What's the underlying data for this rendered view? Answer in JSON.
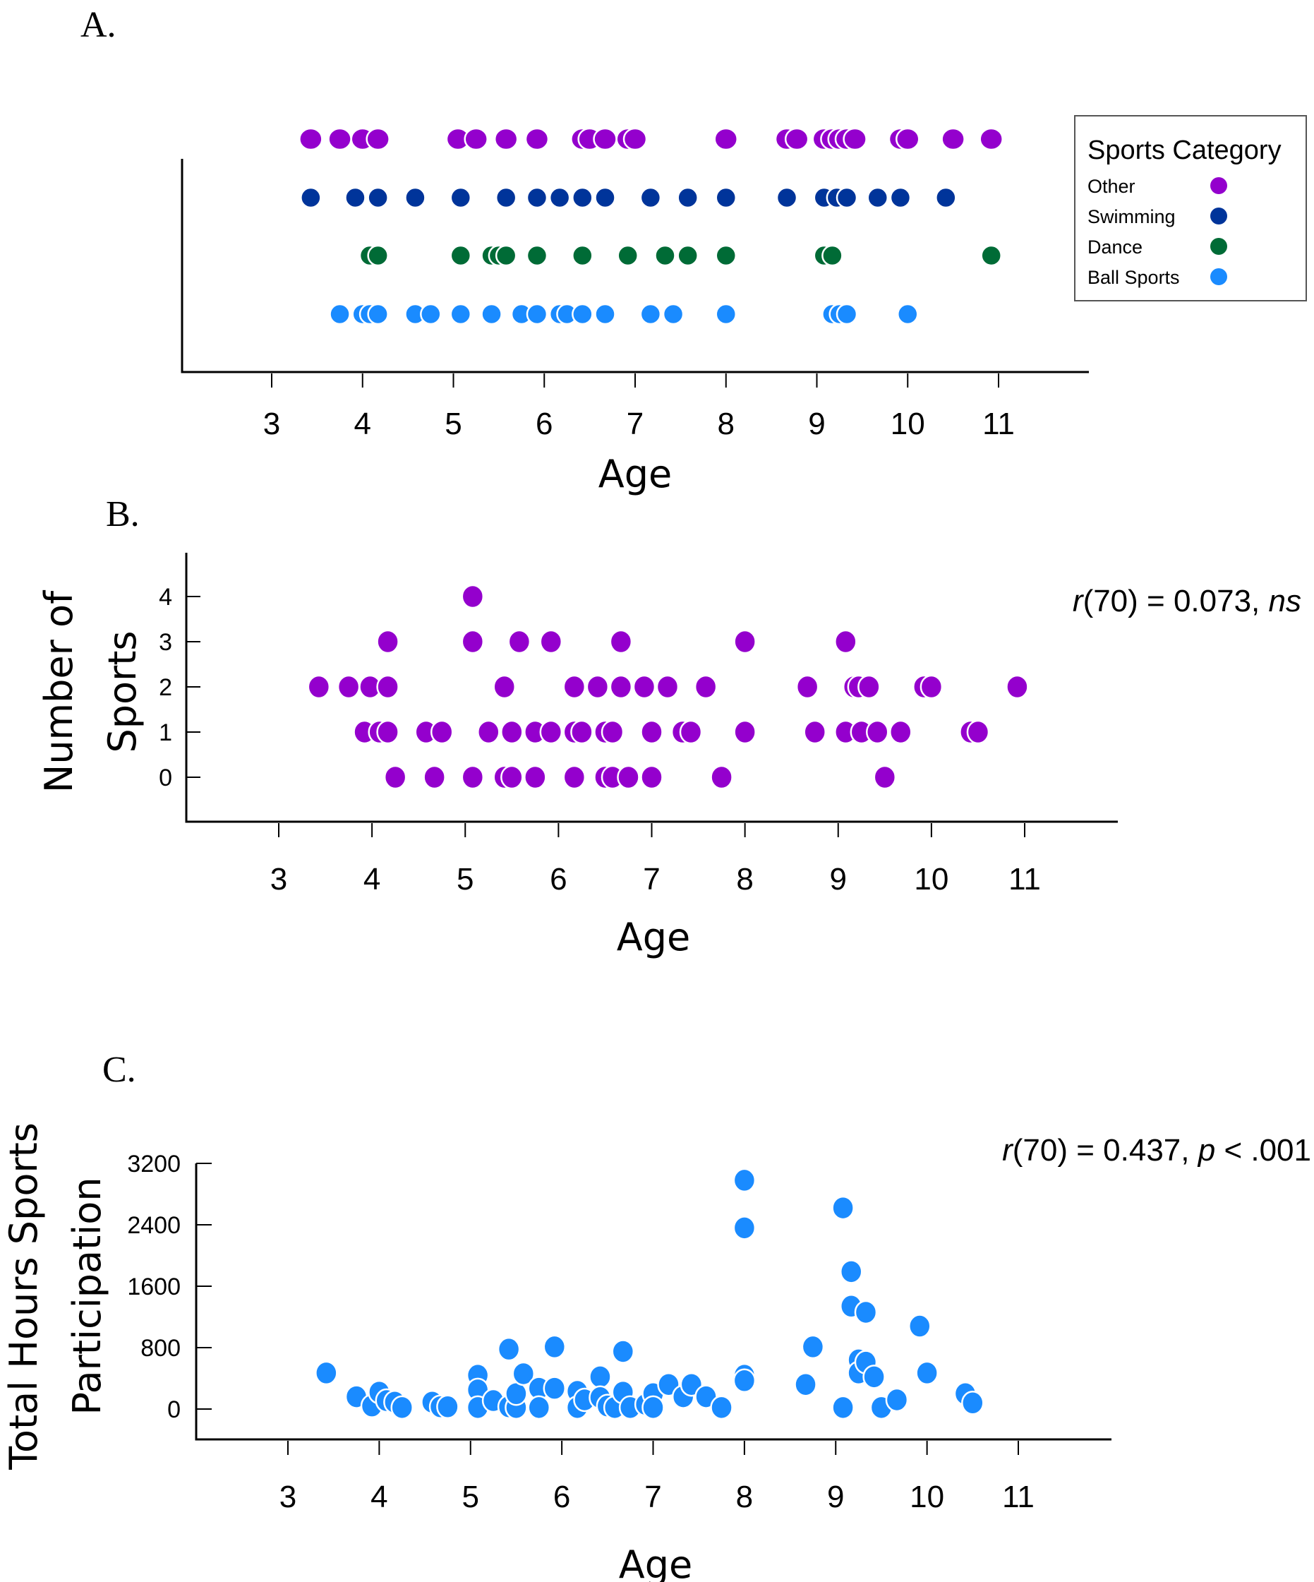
{
  "chart_data": [
    {
      "panel": "A.",
      "type": "scatter",
      "title": "",
      "xlabel": "Age",
      "ylabel": "",
      "xlim": [
        2.0,
        12.0
      ],
      "xticks": [
        "3",
        "4",
        "5",
        "6",
        "7",
        "8",
        "9",
        "10",
        "11"
      ],
      "legend": {
        "title": "Sports Category",
        "placement": "top-right",
        "entries": [
          {
            "name": "Other",
            "color": "#9400CD"
          },
          {
            "name": "Swimming",
            "color": "#00349A"
          },
          {
            "name": "Dance",
            "color": "#006B36"
          },
          {
            "name": "Ball Sports",
            "color": "#1A8BFF"
          }
        ]
      },
      "series": [
        {
          "name": "Other",
          "color": "#9400CD",
          "row": 4,
          "x": [
            3.43,
            3.75,
            4.0,
            4.17,
            5.05,
            5.25,
            5.58,
            5.92,
            6.42,
            6.5,
            6.67,
            6.92,
            7.0,
            8.0,
            8.67,
            8.78,
            9.08,
            9.17,
            9.25,
            9.33,
            9.42,
            9.92,
            10.0,
            10.5,
            10.92
          ]
        },
        {
          "name": "Swimming",
          "color": "#00349A",
          "row": 3,
          "x": [
            3.43,
            3.92,
            4.17,
            4.58,
            5.08,
            5.58,
            5.92,
            6.17,
            6.42,
            6.67,
            7.17,
            7.58,
            8.0,
            8.67,
            9.08,
            9.22,
            9.33,
            9.67,
            9.92,
            10.42
          ]
        },
        {
          "name": "Dance",
          "color": "#006B36",
          "row": 2,
          "x": [
            4.08,
            4.17,
            5.08,
            5.42,
            5.5,
            5.58,
            5.92,
            6.42,
            6.92,
            7.33,
            7.58,
            8.0,
            9.08,
            9.17,
            10.92
          ]
        },
        {
          "name": "Ball Sports",
          "color": "#1A8BFF",
          "row": 1,
          "x": [
            3.75,
            4.0,
            4.08,
            4.17,
            4.58,
            4.75,
            5.08,
            5.42,
            5.75,
            5.92,
            6.17,
            6.25,
            6.42,
            6.67,
            7.17,
            7.42,
            8.0,
            9.17,
            9.25,
            9.33,
            10.0
          ]
        }
      ]
    },
    {
      "panel": "B.",
      "type": "scatter",
      "title": "",
      "xlabel": "Age",
      "ylabel": "Number of Sports",
      "xlim": [
        2.0,
        12.0
      ],
      "ylim": [
        -1.0,
        5.0
      ],
      "xticks": [
        "3",
        "4",
        "5",
        "6",
        "7",
        "8",
        "9",
        "10",
        "11"
      ],
      "yticks": [
        "0",
        "1",
        "2",
        "3",
        "4"
      ],
      "annotation": {
        "r": "r",
        "rest": "(70) = 0.073, ",
        "sig": "ns"
      },
      "color": "#9400CD",
      "points": [
        [
          3.43,
          2
        ],
        [
          3.75,
          2
        ],
        [
          3.98,
          2
        ],
        [
          4.17,
          2
        ],
        [
          3.92,
          1
        ],
        [
          4.08,
          1
        ],
        [
          4.17,
          1
        ],
        [
          4.58,
          1
        ],
        [
          4.75,
          1
        ],
        [
          4.25,
          0
        ],
        [
          4.67,
          0
        ],
        [
          5.08,
          0
        ],
        [
          5.42,
          0
        ],
        [
          5.5,
          0
        ],
        [
          5.75,
          0
        ],
        [
          6.17,
          0
        ],
        [
          6.5,
          0
        ],
        [
          6.58,
          0
        ],
        [
          6.75,
          0
        ],
        [
          7.0,
          0
        ],
        [
          7.75,
          0
        ],
        [
          9.5,
          0
        ],
        [
          4.17,
          3
        ],
        [
          5.08,
          3
        ],
        [
          5.58,
          3
        ],
        [
          5.92,
          3
        ],
        [
          6.67,
          3
        ],
        [
          8.0,
          3
        ],
        [
          9.08,
          3
        ],
        [
          5.08,
          4
        ],
        [
          5.42,
          2
        ],
        [
          6.17,
          2
        ],
        [
          6.42,
          2
        ],
        [
          6.67,
          2
        ],
        [
          6.92,
          2
        ],
        [
          7.17,
          2
        ],
        [
          7.58,
          2
        ],
        [
          8.67,
          2
        ],
        [
          9.17,
          2
        ],
        [
          9.22,
          2
        ],
        [
          9.33,
          2
        ],
        [
          9.92,
          2
        ],
        [
          10.0,
          2
        ],
        [
          10.92,
          2
        ],
        [
          5.25,
          1
        ],
        [
          5.5,
          1
        ],
        [
          5.75,
          1
        ],
        [
          5.92,
          1
        ],
        [
          6.17,
          1
        ],
        [
          6.25,
          1
        ],
        [
          6.5,
          1
        ],
        [
          6.58,
          1
        ],
        [
          7.0,
          1
        ],
        [
          7.33,
          1
        ],
        [
          7.42,
          1
        ],
        [
          8.0,
          1
        ],
        [
          8.75,
          1
        ],
        [
          9.08,
          1
        ],
        [
          9.25,
          1
        ],
        [
          9.42,
          1
        ],
        [
          9.67,
          1
        ],
        [
          10.42,
          1
        ],
        [
          10.5,
          1
        ]
      ]
    },
    {
      "panel": "C.",
      "type": "scatter",
      "title": "",
      "xlabel": "Age",
      "ylabel": "Total Hours Sports Participation",
      "xlim": [
        2.0,
        12.0
      ],
      "ylim": [
        -400,
        3200
      ],
      "xticks": [
        "3",
        "4",
        "5",
        "6",
        "7",
        "8",
        "9",
        "10",
        "11"
      ],
      "yticks": [
        "0",
        "800",
        "1600",
        "2400",
        "3200"
      ],
      "annotation": {
        "r": "r",
        "rest": "(70) = 0.437, ",
        "p": "p",
        "tail": " < .001"
      },
      "color": "#1A8BFF",
      "points": [
        [
          3.42,
          470
        ],
        [
          3.75,
          160
        ],
        [
          3.92,
          40
        ],
        [
          4.0,
          220
        ],
        [
          4.08,
          110
        ],
        [
          4.17,
          90
        ],
        [
          4.25,
          20
        ],
        [
          4.58,
          90
        ],
        [
          4.67,
          30
        ],
        [
          4.75,
          30
        ],
        [
          5.08,
          440
        ],
        [
          5.08,
          250
        ],
        [
          5.08,
          20
        ],
        [
          5.25,
          110
        ],
        [
          5.42,
          780
        ],
        [
          5.42,
          30
        ],
        [
          5.5,
          20
        ],
        [
          5.5,
          200
        ],
        [
          5.58,
          460
        ],
        [
          5.75,
          270
        ],
        [
          5.75,
          20
        ],
        [
          5.92,
          810
        ],
        [
          5.92,
          270
        ],
        [
          6.17,
          230
        ],
        [
          6.17,
          20
        ],
        [
          6.25,
          120
        ],
        [
          6.42,
          420
        ],
        [
          6.42,
          150
        ],
        [
          6.5,
          40
        ],
        [
          6.58,
          20
        ],
        [
          6.67,
          750
        ],
        [
          6.67,
          220
        ],
        [
          6.75,
          20
        ],
        [
          6.92,
          60
        ],
        [
          7.0,
          200
        ],
        [
          7.0,
          20
        ],
        [
          7.17,
          320
        ],
        [
          7.33,
          160
        ],
        [
          7.42,
          320
        ],
        [
          7.58,
          160
        ],
        [
          7.75,
          20
        ],
        [
          8.0,
          2980
        ],
        [
          8.0,
          2360
        ],
        [
          8.0,
          440
        ],
        [
          8.0,
          370
        ],
        [
          8.67,
          320
        ],
        [
          8.75,
          810
        ],
        [
          9.08,
          2620
        ],
        [
          9.08,
          20
        ],
        [
          9.17,
          1790
        ],
        [
          9.17,
          1340
        ],
        [
          9.25,
          640
        ],
        [
          9.25,
          470
        ],
        [
          9.33,
          1260
        ],
        [
          9.33,
          610
        ],
        [
          9.42,
          420
        ],
        [
          9.5,
          20
        ],
        [
          9.67,
          120
        ],
        [
          9.92,
          1080
        ],
        [
          10.0,
          470
        ],
        [
          10.42,
          200
        ],
        [
          10.5,
          80
        ]
      ]
    }
  ]
}
